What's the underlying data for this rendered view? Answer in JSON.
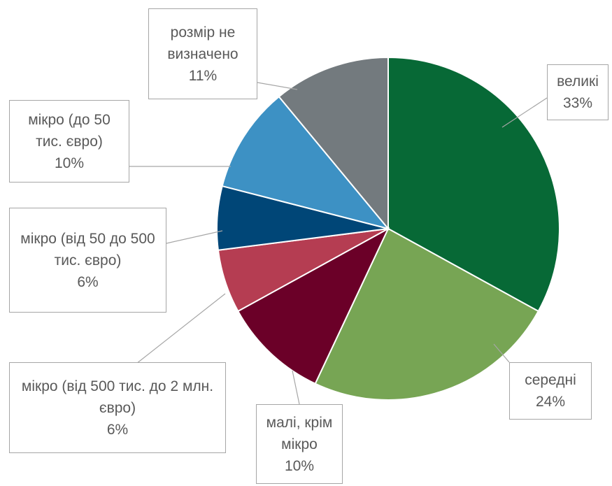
{
  "chart_data": {
    "type": "pie",
    "categories": [
      "великі",
      "середні",
      "малі, крім мікро",
      "мікро (від 500 тис. до 2 млн. євро)",
      "мікро (від 50 до 500 тис. євро)",
      "мікро (до 50 тис. євро)",
      "розмір не визначено"
    ],
    "values": [
      33,
      24,
      10,
      6,
      6,
      10,
      11
    ],
    "value_labels": [
      "33%",
      "24%",
      "10%",
      "6%",
      "6%",
      "10%",
      "11%"
    ],
    "colors": [
      "#076936",
      "#77a554",
      "#6b0028",
      "#b53d52",
      "#004677",
      "#3d91c4",
      "#737a7e"
    ]
  }
}
